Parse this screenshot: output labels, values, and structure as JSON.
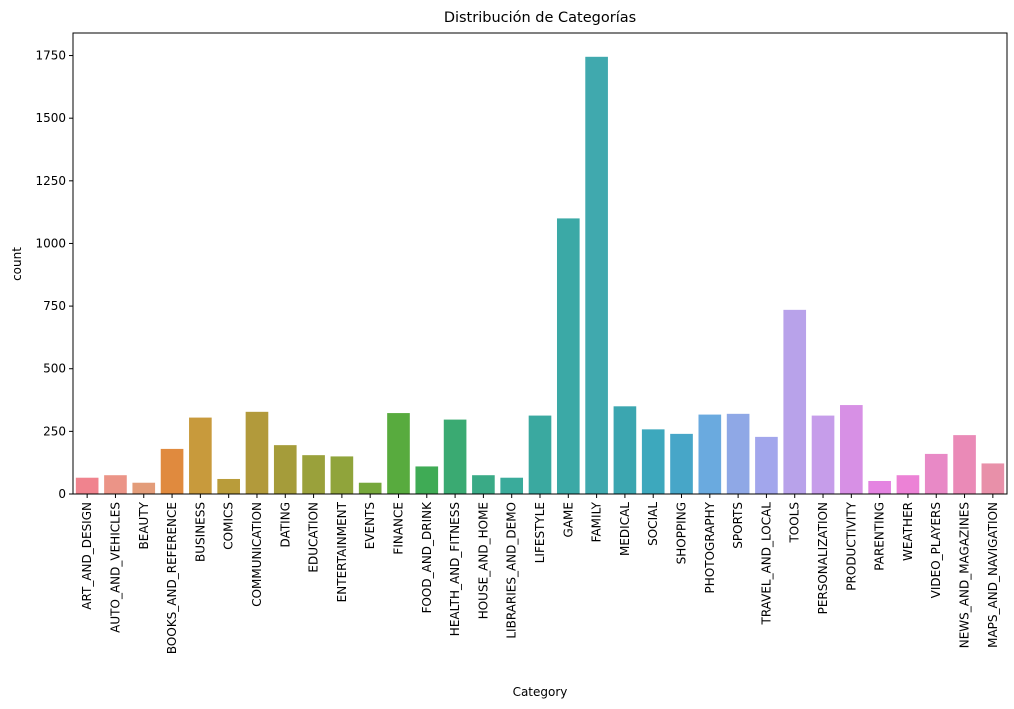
{
  "chart_data": {
    "type": "bar",
    "title": "Distribución de Categorías",
    "xlabel": "Category",
    "ylabel": "count",
    "ylim": [
      0,
      1840
    ],
    "yticks": [
      0,
      250,
      500,
      750,
      1000,
      1250,
      1500,
      1750
    ],
    "grid": false,
    "legend": "none",
    "categories": [
      "ART_AND_DESIGN",
      "AUTO_AND_VEHICLES",
      "BEAUTY",
      "BOOKS_AND_REFERENCE",
      "BUSINESS",
      "COMICS",
      "COMMUNICATION",
      "DATING",
      "EDUCATION",
      "ENTERTAINMENT",
      "EVENTS",
      "FINANCE",
      "FOOD_AND_DRINK",
      "HEALTH_AND_FITNESS",
      "HOUSE_AND_HOME",
      "LIBRARIES_AND_DEMO",
      "LIFESTYLE",
      "GAME",
      "FAMILY",
      "MEDICAL",
      "SOCIAL",
      "SHOPPING",
      "PHOTOGRAPHY",
      "SPORTS",
      "TRAVEL_AND_LOCAL",
      "TOOLS",
      "PERSONALIZATION",
      "PRODUCTIVITY",
      "PARENTING",
      "WEATHER",
      "VIDEO_PLAYERS",
      "NEWS_AND_MAGAZINES",
      "MAPS_AND_NAVIGATION"
    ],
    "values": [
      65,
      75,
      45,
      180,
      305,
      60,
      328,
      195,
      155,
      150,
      45,
      323,
      110,
      297,
      75,
      65,
      313,
      1100,
      1745,
      350,
      258,
      240,
      317,
      320,
      228,
      735,
      313,
      355,
      52,
      75,
      160,
      235,
      122
    ],
    "colors": [
      "#f0838e",
      "#eb9487",
      "#e39c79",
      "#e08a3e",
      "#c89a3c",
      "#b99c3a",
      "#b29a3b",
      "#a59c3a",
      "#9aa13b",
      "#90a43b",
      "#76a83b",
      "#58ab3e",
      "#3fab55",
      "#3aaa72",
      "#3aaa86",
      "#3aab9b",
      "#3aa9a0",
      "#3ba9a6",
      "#40a9ae",
      "#3ba6b0",
      "#3da8bd",
      "#47a6c8",
      "#6aaadf",
      "#8fa8e6",
      "#a2a6ec",
      "#b8a2ea",
      "#c69dea",
      "#d790e5",
      "#e483e1",
      "#ec82d6",
      "#e889c6",
      "#ea8ab7",
      "#e890a9"
    ]
  }
}
